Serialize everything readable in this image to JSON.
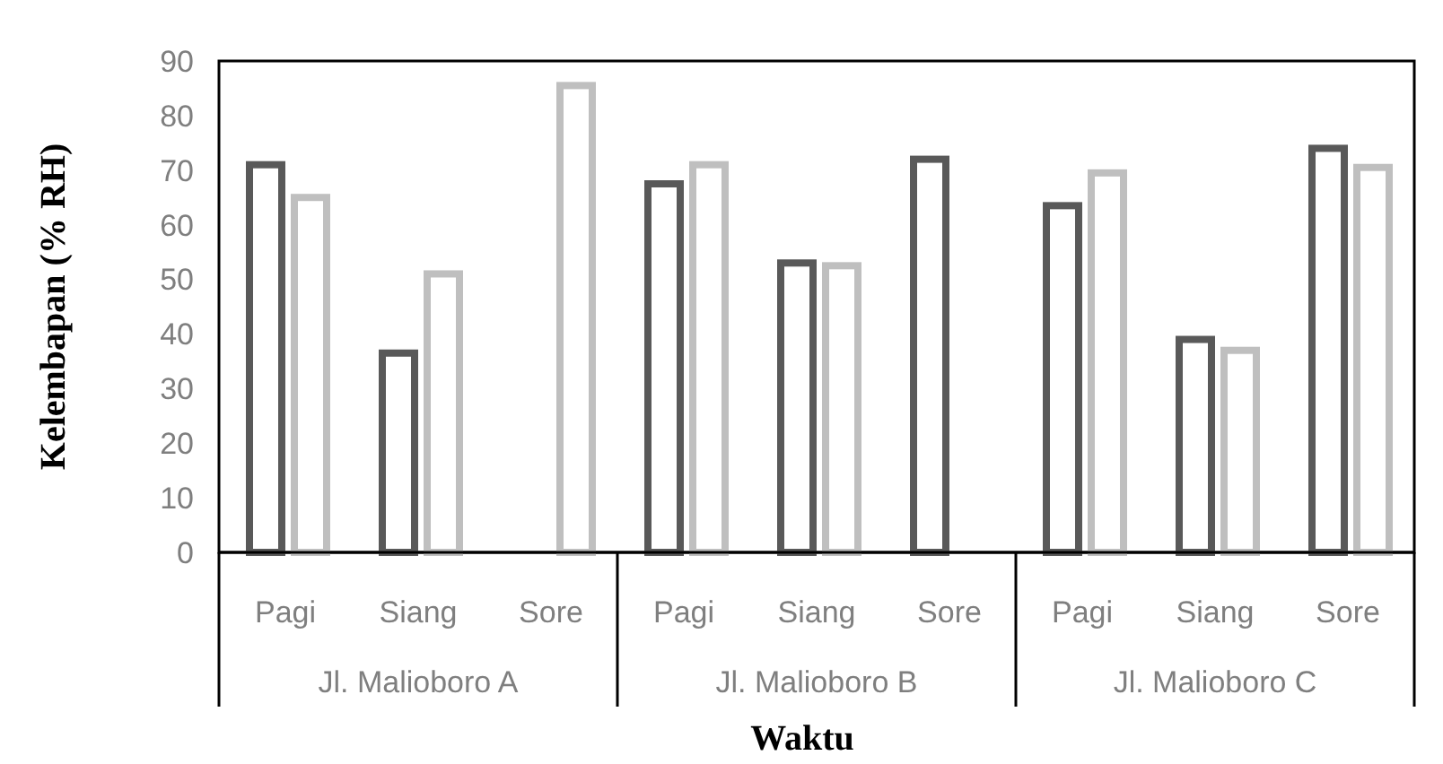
{
  "chart_data": {
    "type": "bar",
    "xlabel": "Waktu",
    "ylabel": "Kelembapan (% RH)",
    "categories": [
      "Pagi",
      "Siang",
      "Sore",
      "Pagi",
      "Siang",
      "Sore",
      "Pagi",
      "Siang",
      "Sore"
    ],
    "annotations": [
      "Jl. Malioboro A",
      "Jl. Malioboro B",
      "Jl. Malioboro C"
    ],
    "series": [
      {
        "color": "#595959",
        "values": [
          71,
          36.5,
          null,
          67.5,
          53,
          72,
          63.5,
          39,
          74
        ]
      },
      {
        "color": "#bfbfbf",
        "values": [
          65,
          51,
          85.5,
          71,
          52.5,
          null,
          69.5,
          37,
          70.5
        ]
      }
    ],
    "ylim": [
      0,
      90
    ],
    "yticks": [
      0,
      10,
      20,
      30,
      40,
      50,
      60,
      70,
      80,
      90
    ],
    "grid": false
  }
}
